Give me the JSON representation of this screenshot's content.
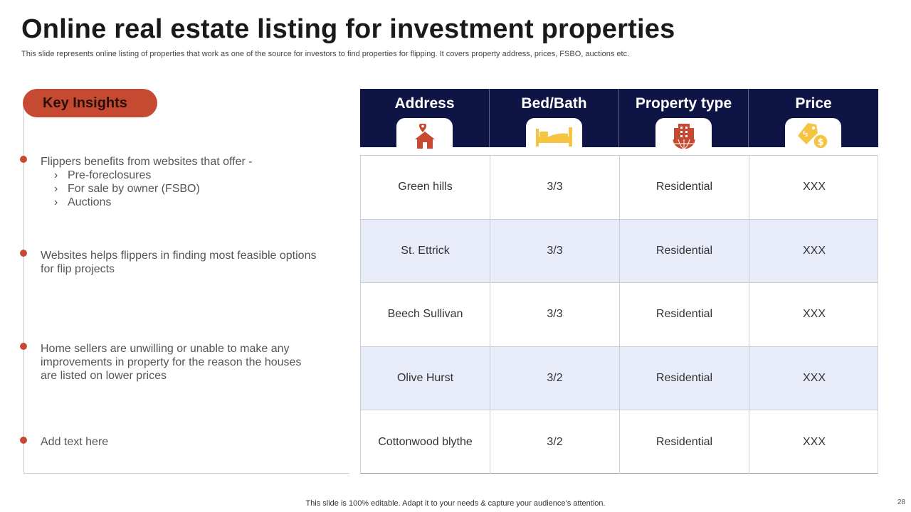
{
  "header": {
    "title": "Online real estate listing for investment properties",
    "subtitle": "This slide represents online listing of properties that work as one of the source for investors to find properties for flipping. It covers property address, prices, FSBO, auctions etc."
  },
  "insights": {
    "label": "Key Insights",
    "bullets": [
      {
        "text": "Flippers benefits from websites that  offer -",
        "sub": [
          "Pre-foreclosures",
          "For sale by owner (FSBO)",
          "Auctions"
        ]
      },
      {
        "lines": [
          "Websites helps flippers in finding most feasible options",
          "for flip projects"
        ]
      },
      {
        "lines": [
          "Home sellers are unwilling or unable to make any",
          "improvements in property for the reason the houses",
          "are listed on lower prices"
        ]
      },
      {
        "lines": [
          "Add text here"
        ]
      }
    ],
    "sub_marker": "›"
  },
  "table": {
    "columns": [
      {
        "label": "Address",
        "icon": "house-location-icon"
      },
      {
        "label": "Bed/Bath",
        "icon": "bed-icon"
      },
      {
        "label": "Property type",
        "icon": "building-globe-icon"
      },
      {
        "label": "Price",
        "icon": "price-tag-icon"
      }
    ],
    "rows": [
      [
        "Green hills",
        "3/3",
        "Residential",
        "XXX"
      ],
      [
        "St. Ettrick",
        "3/3",
        "Residential",
        "XXX"
      ],
      [
        "Beech Sullivan",
        "3/3",
        "Residential",
        "XXX"
      ],
      [
        "Olive Hurst",
        "3/2",
        "Residential",
        "XXX"
      ],
      [
        "Cottonwood blythe",
        "3/2",
        "Residential",
        "XXX"
      ]
    ]
  },
  "colors": {
    "accent": "#c64a32",
    "header_bg": "#0e1443",
    "alt_row": "#e8ebf8",
    "icon_yellow": "#f5c442"
  },
  "footer": {
    "note": "This slide is 100% editable. Adapt it to your needs & capture your audience’s attention.",
    "page": "28"
  }
}
